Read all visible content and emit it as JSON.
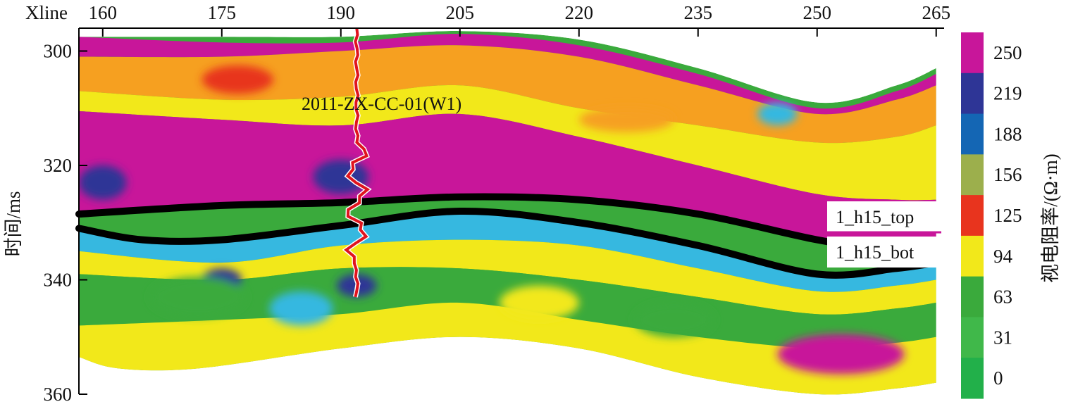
{
  "chart_data": {
    "type": "heatmap",
    "title": "",
    "xlabel": "Xline",
    "ylabel": "时间/ms",
    "xlim": [
      157,
      266
    ],
    "ylim": [
      360,
      296
    ],
    "x_ticks": [
      160,
      175,
      190,
      205,
      220,
      235,
      250,
      265
    ],
    "y_ticks": [
      300,
      320,
      340,
      360
    ],
    "colorbar": {
      "label": "视电阻率/(Ω·m)",
      "tick_labels": [
        250,
        219,
        188,
        156,
        125,
        94,
        63,
        31,
        0
      ],
      "colors": [
        "#c8169a",
        "#2e3596",
        "#1466b4",
        "#9caf4c",
        "#e8341e",
        "#f2e81a",
        "#3aaa3c",
        "#40b84a",
        "#22b04a"
      ]
    },
    "section_top_ms": [
      [
        157,
        297.5
      ],
      [
        175,
        297.5
      ],
      [
        190,
        297.5
      ],
      [
        205,
        296.5
      ],
      [
        220,
        298
      ],
      [
        235,
        303
      ],
      [
        250,
        309
      ],
      [
        260,
        306
      ],
      [
        265,
        303
      ]
    ],
    "section_bottom_ms": [
      [
        157,
        353.5
      ],
      [
        162,
        355.5
      ],
      [
        172,
        355.5
      ],
      [
        190,
        352
      ],
      [
        205,
        350
      ],
      [
        220,
        352
      ],
      [
        235,
        357
      ],
      [
        250,
        360
      ],
      [
        260,
        359
      ],
      [
        265,
        358
      ]
    ],
    "horizons": [
      {
        "name": "1_h15_top",
        "points": [
          [
            157,
            328.5
          ],
          [
            175,
            327
          ],
          [
            190,
            326.5
          ],
          [
            205,
            325.5
          ],
          [
            220,
            326
          ],
          [
            235,
            328.5
          ],
          [
            250,
            333
          ],
          [
            260,
            335
          ],
          [
            265,
            335
          ]
        ]
      },
      {
        "name": "1_h15_bot",
        "points": [
          [
            157,
            331
          ],
          [
            165,
            333
          ],
          [
            175,
            333
          ],
          [
            190,
            330.5
          ],
          [
            205,
            328
          ],
          [
            220,
            330
          ],
          [
            235,
            334
          ],
          [
            250,
            339
          ],
          [
            260,
            338
          ],
          [
            265,
            337
          ]
        ]
      }
    ],
    "well": {
      "name": "2011-ZX-CC-01(W1)",
      "xline": 192,
      "top_ms": 296,
      "bottom_ms": 343
    },
    "layers": [
      {
        "color": "#c8169a",
        "top": [
          [
            157,
            297.5
          ],
          [
            175,
            298.5
          ],
          [
            190,
            298.5
          ],
          [
            205,
            297
          ],
          [
            220,
            299
          ],
          [
            235,
            304
          ],
          [
            250,
            310
          ],
          [
            260,
            307
          ],
          [
            265,
            304
          ]
        ],
        "bottom": [
          [
            157,
            301
          ],
          [
            175,
            301
          ],
          [
            190,
            300
          ],
          [
            205,
            299
          ],
          [
            220,
            301
          ],
          [
            235,
            306
          ],
          [
            250,
            311
          ],
          [
            260,
            308.5
          ],
          [
            265,
            306
          ]
        ]
      },
      {
        "color": "#f6a020",
        "top": [
          [
            157,
            301
          ],
          [
            175,
            301
          ],
          [
            190,
            300
          ],
          [
            205,
            299
          ],
          [
            220,
            301
          ],
          [
            235,
            306
          ],
          [
            250,
            311
          ],
          [
            260,
            308.5
          ],
          [
            265,
            306
          ]
        ],
        "bottom": [
          [
            157,
            307
          ],
          [
            175,
            308.5
          ],
          [
            190,
            308
          ],
          [
            205,
            306
          ],
          [
            220,
            310
          ],
          [
            235,
            313
          ],
          [
            250,
            316
          ],
          [
            260,
            315
          ],
          [
            265,
            313
          ]
        ]
      },
      {
        "color": "#f2e81a",
        "top": [
          [
            157,
            307
          ],
          [
            175,
            308.5
          ],
          [
            190,
            308
          ],
          [
            205,
            306
          ],
          [
            220,
            310
          ],
          [
            235,
            313
          ],
          [
            250,
            316
          ],
          [
            260,
            315
          ],
          [
            265,
            313
          ]
        ],
        "bottom": [
          [
            157,
            310.5
          ],
          [
            175,
            312
          ],
          [
            190,
            313
          ],
          [
            205,
            311
          ],
          [
            220,
            315
          ],
          [
            235,
            320
          ],
          [
            250,
            325
          ],
          [
            260,
            326
          ],
          [
            265,
            326
          ]
        ]
      },
      {
        "color": "#c8169a",
        "top": [
          [
            157,
            310.5
          ],
          [
            175,
            312
          ],
          [
            190,
            313
          ],
          [
            205,
            311
          ],
          [
            220,
            315
          ],
          [
            235,
            320
          ],
          [
            250,
            325
          ],
          [
            260,
            326
          ],
          [
            265,
            326
          ]
        ],
        "bottom": [
          [
            157,
            328
          ],
          [
            175,
            326.5
          ],
          [
            190,
            326
          ],
          [
            205,
            325
          ],
          [
            220,
            325.5
          ],
          [
            235,
            328
          ],
          [
            250,
            332.5
          ],
          [
            260,
            334.5
          ],
          [
            265,
            334.5
          ]
        ]
      },
      {
        "color": "#36b8e0",
        "top": [
          [
            157,
            331
          ],
          [
            165,
            333
          ],
          [
            175,
            333
          ],
          [
            190,
            330.5
          ],
          [
            205,
            328
          ],
          [
            220,
            330
          ],
          [
            235,
            334
          ],
          [
            250,
            339
          ],
          [
            260,
            338
          ],
          [
            265,
            337
          ]
        ],
        "bottom": [
          [
            157,
            335
          ],
          [
            175,
            337
          ],
          [
            190,
            334
          ],
          [
            205,
            333
          ],
          [
            220,
            334
          ],
          [
            235,
            338
          ],
          [
            250,
            342
          ],
          [
            260,
            341
          ],
          [
            265,
            340
          ]
        ]
      },
      {
        "color": "#f2e81a",
        "top": [
          [
            157,
            335
          ],
          [
            175,
            337
          ],
          [
            190,
            334
          ],
          [
            205,
            333
          ],
          [
            220,
            334
          ],
          [
            235,
            338
          ],
          [
            250,
            342
          ],
          [
            260,
            341
          ],
          [
            265,
            340
          ]
        ],
        "bottom": [
          [
            157,
            339
          ],
          [
            175,
            340
          ],
          [
            190,
            338
          ],
          [
            205,
            338
          ],
          [
            220,
            340
          ],
          [
            235,
            343
          ],
          [
            250,
            346
          ],
          [
            260,
            345
          ],
          [
            265,
            344
          ]
        ]
      },
      {
        "color": "#3aaa3c",
        "top": [
          [
            157,
            339
          ],
          [
            175,
            340
          ],
          [
            190,
            338
          ],
          [
            205,
            338
          ],
          [
            220,
            340
          ],
          [
            235,
            343
          ],
          [
            250,
            346
          ],
          [
            260,
            345
          ],
          [
            265,
            344
          ]
        ],
        "bottom": [
          [
            157,
            348
          ],
          [
            175,
            347
          ],
          [
            190,
            346
          ],
          [
            205,
            344
          ],
          [
            220,
            347
          ],
          [
            235,
            350
          ],
          [
            250,
            352
          ],
          [
            260,
            351
          ],
          [
            265,
            350
          ]
        ]
      },
      {
        "color": "#f2e81a",
        "top": [
          [
            157,
            348
          ],
          [
            175,
            347
          ],
          [
            190,
            346
          ],
          [
            205,
            344
          ],
          [
            220,
            347
          ],
          [
            235,
            350
          ],
          [
            250,
            352
          ],
          [
            260,
            351
          ],
          [
            265,
            350
          ]
        ],
        "bottom": [
          [
            157,
            353.5
          ],
          [
            162,
            355.5
          ],
          [
            172,
            355.5
          ],
          [
            190,
            352
          ],
          [
            205,
            350
          ],
          [
            220,
            352
          ],
          [
            235,
            357
          ],
          [
            250,
            360
          ],
          [
            260,
            359
          ],
          [
            265,
            358
          ]
        ]
      }
    ],
    "blobs": [
      {
        "x": 177,
        "y": 305,
        "rx": 4.5,
        "ry": 2.5,
        "color": "#e8341e"
      },
      {
        "x": 226,
        "y": 312,
        "rx": 6,
        "ry": 2.2,
        "color": "#f6a020"
      },
      {
        "x": 160,
        "y": 323,
        "rx": 3,
        "ry": 3,
        "color": "#2e3596"
      },
      {
        "x": 190,
        "y": 322,
        "rx": 3.5,
        "ry": 3,
        "color": "#2e3596"
      },
      {
        "x": 245,
        "y": 311,
        "rx": 2.5,
        "ry": 2,
        "color": "#36b8e0"
      },
      {
        "x": 175,
        "y": 340,
        "rx": 2.5,
        "ry": 2,
        "color": "#2e3596"
      },
      {
        "x": 192,
        "y": 341,
        "rx": 2.5,
        "ry": 2,
        "color": "#2e3596"
      },
      {
        "x": 172,
        "y": 343,
        "rx": 6,
        "ry": 3.5,
        "color": "#3aaa3c"
      },
      {
        "x": 185,
        "y": 345,
        "rx": 4,
        "ry": 3,
        "color": "#36b8e0"
      },
      {
        "x": 215,
        "y": 344,
        "rx": 5,
        "ry": 3,
        "color": "#f2e81a"
      },
      {
        "x": 253,
        "y": 353,
        "rx": 8,
        "ry": 3.5,
        "color": "#c8169a"
      },
      {
        "x": 232,
        "y": 347,
        "rx": 5,
        "ry": 3,
        "color": "#3aaa3c"
      }
    ]
  }
}
